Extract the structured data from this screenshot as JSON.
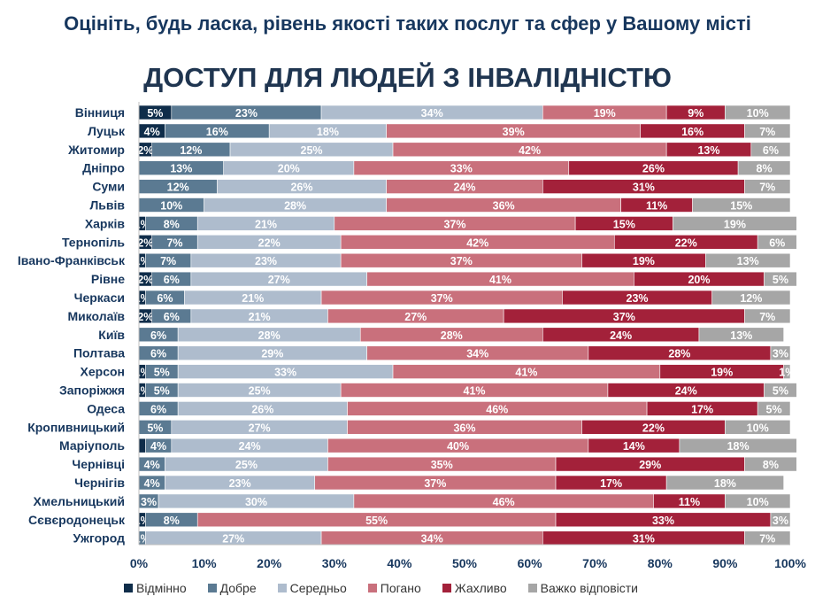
{
  "header": {
    "subtitle": "Оцініть, будь ласка, рівень якості таких послуг та сфер у Вашому місті",
    "title": "ДОСТУП ДЛЯ ЛЮДЕЙ З ІНВАЛІДНІСТЮ"
  },
  "chart_data": {
    "type": "bar",
    "orientation": "horizontal",
    "stacked": "percent",
    "title": "ДОСТУП ДЛЯ ЛЮДЕЙ З ІНВАЛІДНІСТЮ",
    "categories": [
      "Вінниця",
      "Луцьк",
      "Житомир",
      "Дніпро",
      "Суми",
      "Львів",
      "Харків",
      "Тернопіль",
      "Івано-Франківськ",
      "Рівне",
      "Черкаси",
      "Миколаїв",
      "Київ",
      "Полтава",
      "Херсон",
      "Запоріжжя",
      "Одеса",
      "Кропивницький",
      "Маріуполь",
      "Чернівці",
      "Чернігів",
      "Хмельницький",
      "Сєвєродонецьк",
      "Ужгород"
    ],
    "series": [
      {
        "name": "Відмінно",
        "color": "#0f2d4a",
        "values": [
          5,
          4,
          2,
          0,
          0,
          0,
          1,
          2,
          1,
          2,
          1,
          2,
          0,
          0,
          1,
          1,
          0,
          0,
          1,
          0,
          0,
          0,
          1,
          0
        ],
        "labels": [
          "5%",
          "4%",
          "2%",
          "",
          "",
          "",
          "1%",
          "2%",
          "1%",
          "2%",
          "1%",
          "2%",
          "",
          "",
          "1%",
          "1%",
          "",
          "",
          "",
          "",
          "",
          "",
          "1%",
          ""
        ]
      },
      {
        "name": "Добре",
        "color": "#5b7a92",
        "values": [
          23,
          16,
          12,
          13,
          12,
          10,
          8,
          7,
          7,
          6,
          6,
          6,
          6,
          6,
          5,
          5,
          6,
          5,
          4,
          4,
          4,
          3,
          8,
          1
        ],
        "labels": [
          "23%",
          "16%",
          "12%",
          "13%",
          "12%",
          "10%",
          "8%",
          "7%",
          "7%",
          "6%",
          "6%",
          "6%",
          "6%",
          "6%",
          "5%",
          "5%",
          "6%",
          "5%",
          "4%",
          "4%",
          "4%",
          "3%",
          "8%",
          "1%"
        ]
      },
      {
        "name": "Середньо",
        "color": "#aebccd",
        "values": [
          34,
          18,
          25,
          20,
          26,
          28,
          21,
          22,
          23,
          27,
          21,
          21,
          28,
          29,
          33,
          25,
          26,
          27,
          24,
          25,
          23,
          30,
          0,
          27
        ],
        "labels": [
          "34%",
          "18%",
          "25%",
          "20%",
          "26%",
          "28%",
          "21%",
          "22%",
          "23%",
          "27%",
          "21%",
          "21%",
          "28%",
          "29%",
          "33%",
          "25%",
          "26%",
          "27%",
          "24%",
          "25%",
          "23%",
          "30%",
          "",
          "27%"
        ]
      },
      {
        "name": "Погано",
        "color": "#c9707c",
        "values": [
          19,
          39,
          42,
          33,
          24,
          36,
          37,
          42,
          37,
          41,
          37,
          27,
          28,
          34,
          41,
          41,
          46,
          36,
          40,
          35,
          37,
          46,
          55,
          34
        ],
        "labels": [
          "19%",
          "39%",
          "42%",
          "33%",
          "24%",
          "36%",
          "37%",
          "42%",
          "37%",
          "41%",
          "37%",
          "27%",
          "28%",
          "34%",
          "41%",
          "41%",
          "46%",
          "36%",
          "40%",
          "35%",
          "37%",
          "46%",
          "55%",
          "34%"
        ]
      },
      {
        "name": "Жахливо",
        "color": "#a3213a",
        "values": [
          9,
          16,
          13,
          26,
          31,
          11,
          15,
          22,
          19,
          20,
          23,
          37,
          24,
          28,
          19,
          24,
          17,
          22,
          14,
          29,
          17,
          11,
          33,
          31
        ],
        "labels": [
          "9%",
          "16%",
          "13%",
          "26%",
          "31%",
          "11%",
          "15%",
          "22%",
          "19%",
          "20%",
          "23%",
          "37%",
          "24%",
          "28%",
          "19%",
          "24%",
          "17%",
          "22%",
          "14%",
          "29%",
          "17%",
          "11%",
          "33%",
          "31%"
        ]
      },
      {
        "name": "Важко відповісти",
        "color": "#a6a6a6",
        "values": [
          10,
          7,
          6,
          8,
          7,
          15,
          19,
          6,
          13,
          5,
          12,
          7,
          13,
          3,
          1,
          5,
          5,
          10,
          18,
          8,
          18,
          10,
          3,
          7
        ],
        "labels": [
          "10%",
          "7%",
          "6%",
          "8%",
          "7%",
          "15%",
          "19%",
          "6%",
          "13%",
          "5%",
          "12%",
          "7%",
          "13%",
          "3%",
          "1%",
          "5%",
          "5%",
          "10%",
          "18%",
          "8%",
          "18%",
          "10%",
          "3%",
          "7%"
        ]
      }
    ],
    "x_ticks": [
      "0%",
      "10%",
      "20%",
      "30%",
      "40%",
      "50%",
      "60%",
      "70%",
      "80%",
      "90%",
      "100%"
    ],
    "xlim": [
      0,
      100
    ],
    "grid": false,
    "legend_position": "bottom"
  }
}
